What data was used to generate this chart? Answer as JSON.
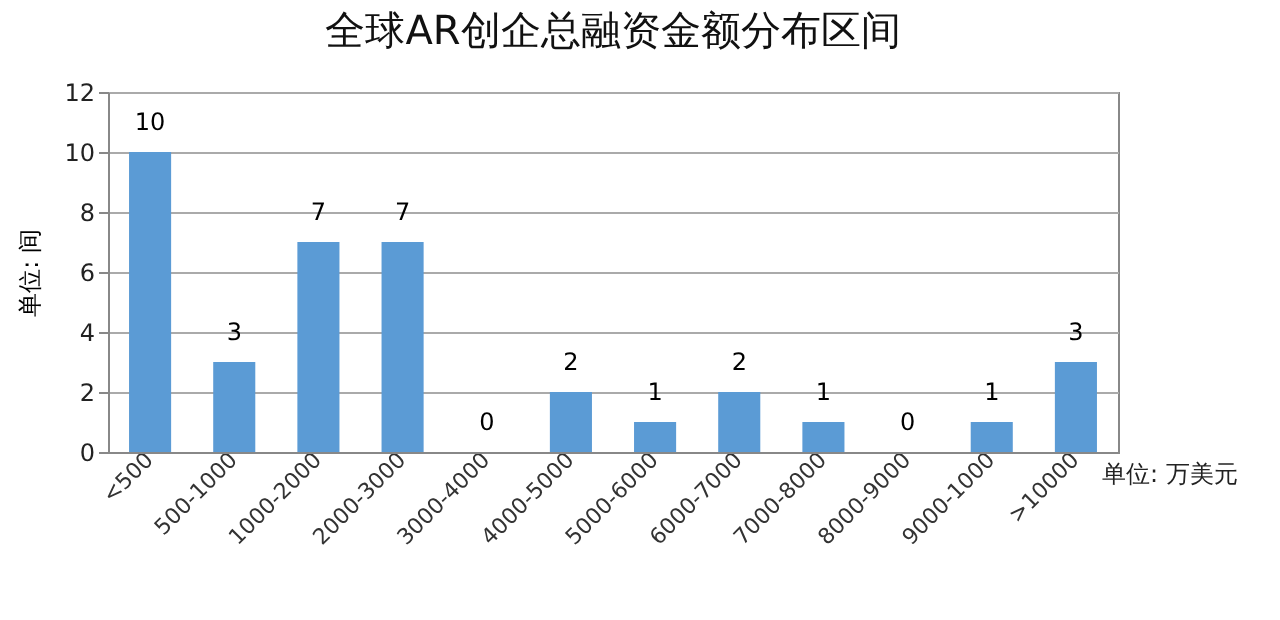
{
  "chart_data": {
    "type": "bar",
    "title": "全球AR创企总融资金额分布区间",
    "ylabel": "单位: 间",
    "annotations": [
      "单位: 万美元"
    ],
    "categories": [
      "<500",
      "500-1000",
      "1000-2000",
      "2000-3000",
      "3000-4000",
      "4000-5000",
      "5000-6000",
      "6000-7000",
      "7000-8000",
      "8000-9000",
      "9000-1000",
      ">10000"
    ],
    "values": [
      10,
      3,
      7,
      7,
      0,
      2,
      1,
      2,
      1,
      0,
      1,
      3
    ],
    "color": "#5b9bd5",
    "ylim": [
      0,
      12
    ],
    "yticks": [
      0,
      2,
      4,
      6,
      8,
      10,
      12
    ],
    "grid": "y",
    "data_labels": true
  }
}
